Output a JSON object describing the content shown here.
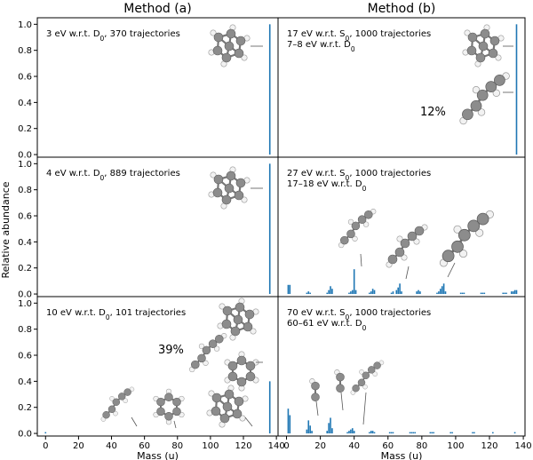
{
  "figure": {
    "column_titles": [
      "Method (a)",
      "Method (b)"
    ],
    "ylabel": "Relative abundance",
    "xlabel": "Mass (u)",
    "atom_colors": {
      "carbon": "#8c8c8c",
      "hydrogen": "#f2f2f2",
      "bond": "#777777"
    }
  },
  "chart_data": [
    {
      "type": "bar",
      "panel": "a1",
      "annotation": [
        "3 eV w.r.t. D0, 370 trajectories"
      ],
      "xlim": [
        -5,
        141
      ],
      "ylim": [
        -0.02,
        1.05
      ],
      "xticks": [],
      "yticks": [
        "0.0",
        "0.2",
        "0.4",
        "0.6",
        "0.8",
        "1.0"
      ],
      "xlabel": "",
      "percent_label": "",
      "bars": [
        {
          "x": 136,
          "y": 1.0
        }
      ]
    },
    {
      "type": "bar",
      "panel": "b1",
      "annotation": [
        "17 eV w.r.t. S0, 1000 trajectories",
        "7–8 eV w.r.t. D0"
      ],
      "xlim": [
        -5,
        141
      ],
      "ylim": [
        -0.02,
        1.05
      ],
      "xticks": [],
      "yticks": [],
      "xlabel": "",
      "percent_label": "12%",
      "bars": [
        {
          "x": 136,
          "y": 1.0
        }
      ]
    },
    {
      "type": "bar",
      "panel": "a2",
      "annotation": [
        "4 eV w.r.t. D0, 889 trajectories"
      ],
      "xlim": [
        -5,
        141
      ],
      "ylim": [
        -0.02,
        1.05
      ],
      "xticks": [],
      "yticks": [
        "0.0",
        "0.2",
        "0.4",
        "0.6",
        "0.8",
        "1.0"
      ],
      "xlabel": "",
      "percent_label": "",
      "bars": [
        {
          "x": 136,
          "y": 1.0
        }
      ]
    },
    {
      "type": "bar",
      "panel": "b2",
      "annotation": [
        "27 eV w.r.t. S0, 1000 trajectories",
        "17–18 eV w.r.t. D0"
      ],
      "xlim": [
        -5,
        141
      ],
      "ylim": [
        -0.02,
        1.05
      ],
      "xticks": [],
      "yticks": [],
      "xlabel": "",
      "percent_label": "",
      "bars": [
        {
          "x": 1,
          "y": 0.07
        },
        {
          "x": 2,
          "y": 0.07
        },
        {
          "x": 12,
          "y": 0.01
        },
        {
          "x": 13,
          "y": 0.02
        },
        {
          "x": 14,
          "y": 0.01
        },
        {
          "x": 24,
          "y": 0.01
        },
        {
          "x": 25,
          "y": 0.03
        },
        {
          "x": 26,
          "y": 0.06
        },
        {
          "x": 27,
          "y": 0.04
        },
        {
          "x": 37,
          "y": 0.01
        },
        {
          "x": 38,
          "y": 0.02
        },
        {
          "x": 39,
          "y": 0.03
        },
        {
          "x": 40,
          "y": 0.19
        },
        {
          "x": 41,
          "y": 0.03
        },
        {
          "x": 49,
          "y": 0.01
        },
        {
          "x": 50,
          "y": 0.02
        },
        {
          "x": 51,
          "y": 0.04
        },
        {
          "x": 52,
          "y": 0.03
        },
        {
          "x": 62,
          "y": 0.01
        },
        {
          "x": 63,
          "y": 0.02
        },
        {
          "x": 65,
          "y": 0.03
        },
        {
          "x": 66,
          "y": 0.05
        },
        {
          "x": 67,
          "y": 0.08
        },
        {
          "x": 68,
          "y": 0.02
        },
        {
          "x": 77,
          "y": 0.02
        },
        {
          "x": 78,
          "y": 0.03
        },
        {
          "x": 79,
          "y": 0.02
        },
        {
          "x": 89,
          "y": 0.01
        },
        {
          "x": 90,
          "y": 0.02
        },
        {
          "x": 91,
          "y": 0.04
        },
        {
          "x": 92,
          "y": 0.06
        },
        {
          "x": 93,
          "y": 0.08
        },
        {
          "x": 94,
          "y": 0.02
        },
        {
          "x": 103,
          "y": 0.01
        },
        {
          "x": 104,
          "y": 0.01
        },
        {
          "x": 105,
          "y": 0.01
        },
        {
          "x": 115,
          "y": 0.01
        },
        {
          "x": 116,
          "y": 0.01
        },
        {
          "x": 117,
          "y": 0.01
        },
        {
          "x": 128,
          "y": 0.01
        },
        {
          "x": 129,
          "y": 0.01
        },
        {
          "x": 130,
          "y": 0.01
        },
        {
          "x": 133,
          "y": 0.02
        },
        {
          "x": 134,
          "y": 0.02
        },
        {
          "x": 135,
          "y": 0.03
        },
        {
          "x": 136,
          "y": 0.03
        }
      ]
    },
    {
      "type": "bar",
      "panel": "a3",
      "annotation": [
        "10 eV w.r.t. D0, 101 trajectories"
      ],
      "xlim": [
        -5,
        141
      ],
      "ylim": [
        -0.02,
        1.05
      ],
      "xticks": [
        "0",
        "20",
        "40",
        "60",
        "80",
        "100",
        "120",
        "140"
      ],
      "yticks": [
        "0.0",
        "0.2",
        "0.4",
        "0.6",
        "0.8",
        "1.0"
      ],
      "xlabel": "Mass (u)",
      "percent_label": "39%",
      "bars": [
        {
          "x": 0,
          "y": 0.01
        },
        {
          "x": 136,
          "y": 0.4
        }
      ]
    },
    {
      "type": "bar",
      "panel": "b3",
      "annotation": [
        "70 eV w.r.t. S0, 1000 trajectories",
        "60–61 eV w.r.t. D0"
      ],
      "xlim": [
        -5,
        141
      ],
      "ylim": [
        -0.02,
        1.05
      ],
      "xticks": [
        "0",
        "20",
        "40",
        "60",
        "80",
        "100",
        "120",
        "140"
      ],
      "yticks": [],
      "xlabel": "Mass (u)",
      "percent_label": "",
      "bars": [
        {
          "x": 1,
          "y": 0.19
        },
        {
          "x": 2,
          "y": 0.14
        },
        {
          "x": 12,
          "y": 0.03
        },
        {
          "x": 13,
          "y": 0.1
        },
        {
          "x": 14,
          "y": 0.06
        },
        {
          "x": 15,
          "y": 0.02
        },
        {
          "x": 24,
          "y": 0.02
        },
        {
          "x": 25,
          "y": 0.08
        },
        {
          "x": 26,
          "y": 0.12
        },
        {
          "x": 27,
          "y": 0.04
        },
        {
          "x": 36,
          "y": 0.01
        },
        {
          "x": 37,
          "y": 0.02
        },
        {
          "x": 38,
          "y": 0.03
        },
        {
          "x": 39,
          "y": 0.04
        },
        {
          "x": 40,
          "y": 0.02
        },
        {
          "x": 49,
          "y": 0.01
        },
        {
          "x": 50,
          "y": 0.02
        },
        {
          "x": 51,
          "y": 0.02
        },
        {
          "x": 52,
          "y": 0.01
        },
        {
          "x": 61,
          "y": 0.01
        },
        {
          "x": 62,
          "y": 0.01
        },
        {
          "x": 63,
          "y": 0.01
        },
        {
          "x": 73,
          "y": 0.01
        },
        {
          "x": 74,
          "y": 0.01
        },
        {
          "x": 75,
          "y": 0.01
        },
        {
          "x": 76,
          "y": 0.01
        },
        {
          "x": 85,
          "y": 0.01
        },
        {
          "x": 86,
          "y": 0.01
        },
        {
          "x": 87,
          "y": 0.01
        },
        {
          "x": 97,
          "y": 0.01
        },
        {
          "x": 98,
          "y": 0.01
        },
        {
          "x": 110,
          "y": 0.01
        },
        {
          "x": 111,
          "y": 0.01
        },
        {
          "x": 122,
          "y": 0.01
        },
        {
          "x": 135,
          "y": 0.01
        }
      ]
    }
  ]
}
